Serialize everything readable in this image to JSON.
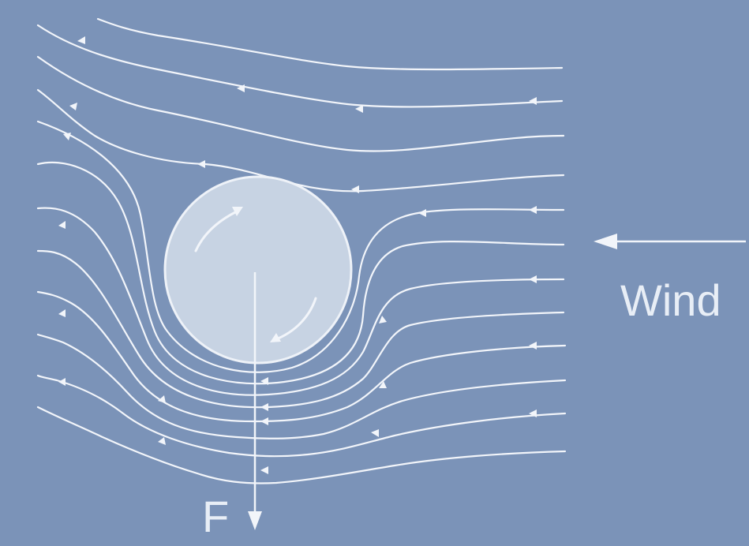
{
  "diagram": {
    "wind_label": "Wind",
    "force_label": "F"
  },
  "colors": {
    "background": "#7b93b8",
    "streamline": "#f2f5fa",
    "ball_fill": "#c7d3e3",
    "ball_stroke": "#eef2f8",
    "label": "#e8eef6"
  }
}
